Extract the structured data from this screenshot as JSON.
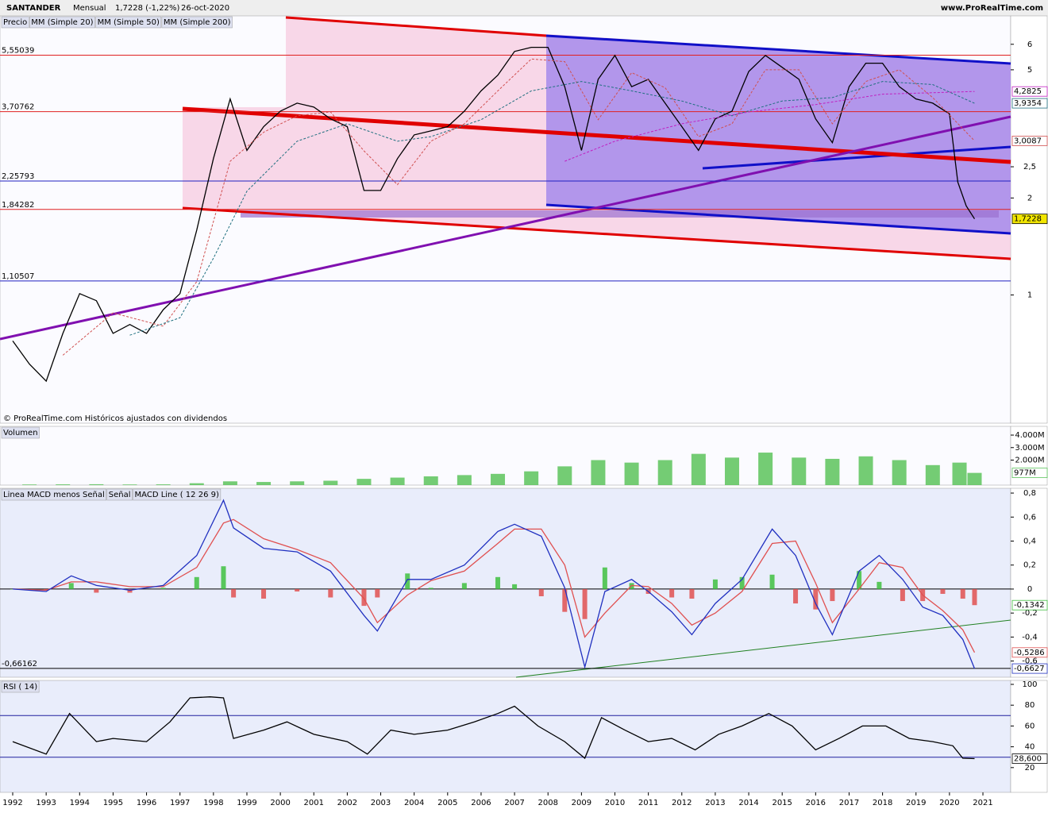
{
  "header": {
    "symbol": "SANTANDER",
    "period": "Mensual",
    "quote": "1,7228 (-1,22%)",
    "date": "26-oct-2020",
    "site": "www.ProRealTime.com",
    "note": "© ProRealTime.com  Históricos ajustados con dividendos"
  },
  "chart_data": [
    {
      "type": "line",
      "log_scale": true,
      "xlim": [
        1991.62,
        2021.83
      ],
      "ylim": [
        0.4,
        7.35
      ],
      "yticks": [
        1,
        2,
        {
          "value": 2.5,
          "label": "2,5"
        },
        5,
        6
      ],
      "levels": [
        {
          "value": 5.55039,
          "label": "5,55039",
          "color": "#e02020"
        },
        {
          "value": 3.70762,
          "label": "3,70762",
          "color": "#e02020"
        },
        {
          "value": 2.25793,
          "label": "2,25793",
          "color": "#2020c0"
        },
        {
          "value": 1.84282,
          "label": "1,84282",
          "color": "#e02020"
        },
        {
          "value": 1.10507,
          "label": "1,10507",
          "color": "#2020c0"
        }
      ],
      "series": [
        {
          "name": "Precio",
          "color": "#000000",
          "label_bg": "#f2e600",
          "x": [
            1992,
            1992.5,
            1993,
            1993.5,
            1994,
            1994.5,
            1995,
            1995.5,
            1996,
            1996.5,
            1997,
            1997.5,
            1998,
            1998.5,
            1999,
            1999.5,
            2000,
            2000.5,
            2001,
            2001.5,
            2002,
            2002.5,
            2003,
            2003.5,
            2004,
            2004.5,
            2005,
            2005.5,
            2006,
            2006.5,
            2007,
            2007.5,
            2008,
            2008.5,
            2009,
            2009.5,
            2010,
            2010.5,
            2011,
            2011.5,
            2012,
            2012.5,
            2013,
            2013.5,
            2014,
            2014.5,
            2015,
            2015.5,
            2016,
            2016.5,
            2017,
            2017.5,
            2018,
            2018.5,
            2019,
            2019.5,
            2020,
            2020.25,
            2020.5,
            2020.75
          ],
          "values": [
            0.72,
            0.61,
            0.54,
            0.76,
            1.01,
            0.96,
            0.76,
            0.81,
            0.76,
            0.9,
            1.01,
            1.59,
            2.65,
            4.06,
            2.81,
            3.33,
            3.72,
            3.94,
            3.83,
            3.52,
            3.33,
            2.11,
            2.11,
            2.65,
            3.14,
            3.23,
            3.33,
            3.72,
            4.3,
            4.81,
            5.7,
            5.87,
            5.87,
            4.43,
            2.81,
            4.67,
            5.54,
            4.43,
            4.67,
            3.94,
            3.33,
            2.81,
            3.52,
            3.72,
            4.94,
            5.54,
            5.09,
            4.67,
            3.52,
            2.97,
            4.43,
            5.24,
            5.24,
            4.43,
            4.06,
            3.94,
            3.65,
            2.24,
            1.89,
            1.7228
          ],
          "last_label": "1,7228"
        },
        {
          "name": "MM (Simple 20)",
          "color": "#d05050",
          "dash": true,
          "x": [
            1993.5,
            1995,
            1996.5,
            1997.5,
            1998.5,
            1999.5,
            2000.5,
            2001.5,
            2002.5,
            2003.5,
            2004.5,
            2005.5,
            2006.5,
            2007.5,
            2008.5,
            2009.5,
            2010.5,
            2011.5,
            2012.5,
            2013.5,
            2014.5,
            2015.5,
            2016.5,
            2017.5,
            2018.5,
            2019.5,
            2020.75
          ],
          "values": [
            0.65,
            0.88,
            0.8,
            1.1,
            2.6,
            3.2,
            3.6,
            3.7,
            2.8,
            2.2,
            3.0,
            3.4,
            4.3,
            5.4,
            5.3,
            3.5,
            4.9,
            4.4,
            3.1,
            3.4,
            5.0,
            5.0,
            3.4,
            4.6,
            5.0,
            4.1,
            3.0087
          ],
          "last_label": "3,0087"
        },
        {
          "name": "MM (Simple 50)",
          "color": "#207080",
          "dash": true,
          "x": [
            1995.5,
            1997,
            1998,
            1999,
            2000.5,
            2002,
            2003.5,
            2004.5,
            2006,
            2007.5,
            2009,
            2010.5,
            2012,
            2013.5,
            2015,
            2016.5,
            2018,
            2019.5,
            2020.75
          ],
          "values": [
            0.75,
            0.85,
            1.3,
            2.1,
            3.0,
            3.4,
            3.0,
            3.1,
            3.5,
            4.3,
            4.6,
            4.3,
            4.0,
            3.6,
            4.0,
            4.1,
            4.6,
            4.5,
            3.9354
          ],
          "last_label": "3,9354"
        },
        {
          "name": "MM (Simple 200)",
          "color": "#c020c0",
          "dash": true,
          "x": [
            2008.5,
            2010,
            2012,
            2014,
            2016,
            2018,
            2020.75
          ],
          "values": [
            2.6,
            3.0,
            3.4,
            3.7,
            3.9,
            4.2,
            4.2825
          ],
          "last_label": "4,2825"
        }
      ]
    },
    {
      "type": "bar",
      "xlim": [
        1991.62,
        2021.83
      ],
      "ylim": [
        0,
        4700
      ],
      "yticks": [
        {
          "value": 4000,
          "label": "4.000M"
        },
        {
          "value": 3000,
          "label": "3.000M"
        },
        {
          "value": 2000,
          "label": "2.000M"
        }
      ],
      "series": [
        {
          "name": "Volumen",
          "color": "#5cc35c",
          "label_bg": "#ffffff",
          "x": [
            1992.5,
            1993.5,
            1994.5,
            1995.5,
            1996.5,
            1997.5,
            1998.5,
            1999.5,
            2000.5,
            2001.5,
            2002.5,
            2003.5,
            2004.5,
            2005.5,
            2006.5,
            2007.5,
            2008.5,
            2009.5,
            2010.5,
            2011.5,
            2012.5,
            2013.5,
            2014.5,
            2015.5,
            2016.5,
            2017.5,
            2018.5,
            2019.5,
            2020.3,
            2020.75
          ],
          "values": [
            50,
            60,
            70,
            50,
            60,
            150,
            300,
            250,
            300,
            350,
            500,
            600,
            700,
            800,
            900,
            1100,
            1500,
            2000,
            1800,
            2000,
            2500,
            2200,
            2600,
            2200,
            2100,
            2300,
            2000,
            1600,
            1800,
            977
          ],
          "last_label": "977M"
        }
      ]
    },
    {
      "type": "line",
      "xlim": [
        1991.62,
        2021.83
      ],
      "ylim": [
        -0.735,
        0.84
      ],
      "yticks": [
        {
          "value": 0.8,
          "label": "0,8"
        },
        {
          "value": 0.6,
          "label": "0,6"
        },
        {
          "value": 0.4,
          "label": "0,4"
        },
        {
          "value": 0.2,
          "label": "0,2"
        },
        0,
        {
          "value": -0.2,
          "label": "-0,2"
        },
        {
          "value": -0.4,
          "label": "-0,4"
        },
        {
          "value": -0.6,
          "label": "-0,6"
        }
      ],
      "levels": [
        {
          "value": 0,
          "color": "#000000"
        },
        {
          "value": -0.66162,
          "label": "-0,66162",
          "color": "#000000"
        }
      ],
      "series": [
        {
          "name": "Linea MACD menos Señal",
          "type": "bar",
          "color": "#40c040",
          "negative_color": "#e05050",
          "label_bg": "#ffffff",
          "x": [
            1992,
            1993,
            1993.75,
            1994.5,
            1995.5,
            1996.5,
            1997.5,
            1998.3,
            1998.6,
            1999.5,
            2000.5,
            2001.5,
            2002.5,
            2002.9,
            2003.8,
            2004.5,
            2005.5,
            2006.5,
            2007,
            2007.8,
            2008.5,
            2009.1,
            2009.7,
            2010.5,
            2011,
            2011.7,
            2012.3,
            2013,
            2013.8,
            2014.7,
            2015.4,
            2016,
            2016.5,
            2017.3,
            2017.9,
            2018.6,
            2019.2,
            2019.8,
            2020.4,
            2020.75
          ],
          "values": [
            0,
            -0.01,
            0.05,
            -0.03,
            -0.03,
            0.01,
            0.1,
            0.19,
            -0.07,
            -0.08,
            -0.02,
            -0.07,
            -0.14,
            -0.07,
            0.13,
            0.01,
            0.05,
            0.1,
            0.04,
            -0.06,
            -0.19,
            -0.25,
            0.18,
            0.05,
            -0.04,
            -0.07,
            -0.08,
            0.08,
            0.1,
            0.12,
            -0.12,
            -0.17,
            -0.1,
            0.15,
            0.06,
            -0.1,
            -0.1,
            -0.04,
            -0.08,
            -0.1342
          ],
          "last_label": "-0,1342"
        },
        {
          "name": "Señal",
          "color": "#e05050",
          "label_bg": "#ffffff",
          "x": [
            1992,
            1993,
            1993.75,
            1994.5,
            1995.5,
            1996.5,
            1997.5,
            1998.3,
            1998.6,
            1999.5,
            2000.5,
            2001.5,
            2002.5,
            2002.9,
            2003.8,
            2004.5,
            2005.5,
            2006.5,
            2007,
            2007.8,
            2008.5,
            2009.1,
            2009.7,
            2010.5,
            2011,
            2011.7,
            2012.3,
            2013,
            2013.8,
            2014.7,
            2015.4,
            2016,
            2016.5,
            2017.3,
            2017.9,
            2018.6,
            2019.2,
            2019.8,
            2020.4,
            2020.75
          ],
          "values": [
            0,
            -0.01,
            0.06,
            0.06,
            0.02,
            0.02,
            0.18,
            0.55,
            0.58,
            0.42,
            0.33,
            0.22,
            -0.08,
            -0.28,
            -0.05,
            0.07,
            0.15,
            0.38,
            0.5,
            0.5,
            0.2,
            -0.4,
            -0.2,
            0.03,
            0.02,
            -0.12,
            -0.3,
            -0.2,
            -0.02,
            0.38,
            0.4,
            0.05,
            -0.28,
            0,
            0.22,
            0.18,
            -0.05,
            -0.18,
            -0.34,
            -0.5286
          ],
          "last_label": "-0,5286"
        },
        {
          "name": "MACD Line ( 12 26 9)",
          "color": "#2030c0",
          "label_bg": "#ffffff",
          "x": [
            1992,
            1993,
            1993.75,
            1994.5,
            1995.5,
            1996.5,
            1997.5,
            1998.3,
            1998.6,
            1999.5,
            2000.5,
            2001.5,
            2002.5,
            2002.9,
            2003.8,
            2004.5,
            2005.5,
            2006.5,
            2007,
            2007.8,
            2008.5,
            2009.1,
            2009.7,
            2010.5,
            2011,
            2011.7,
            2012.3,
            2013,
            2013.8,
            2014.7,
            2015.4,
            2016,
            2016.5,
            2017.3,
            2017.9,
            2018.6,
            2019.2,
            2019.8,
            2020.4,
            2020.75
          ],
          "values": [
            0,
            -0.02,
            0.11,
            0.03,
            -0.01,
            0.03,
            0.28,
            0.74,
            0.51,
            0.34,
            0.31,
            0.15,
            -0.22,
            -0.35,
            0.08,
            0.08,
            0.2,
            0.48,
            0.54,
            0.44,
            0.01,
            -0.65,
            -0.02,
            0.08,
            -0.02,
            -0.19,
            -0.38,
            -0.12,
            0.08,
            0.5,
            0.28,
            -0.12,
            -0.38,
            0.15,
            0.28,
            0.08,
            -0.15,
            -0.22,
            -0.42,
            -0.6627
          ],
          "last_label": "-0,6627"
        }
      ]
    },
    {
      "type": "line",
      "xlim": [
        1991.62,
        2021.83
      ],
      "ylim": [
        -3.8,
        103.8
      ],
      "xticks": [
        1992,
        1993,
        1994,
        1995,
        1996,
        1997,
        1998,
        1999,
        2000,
        2001,
        2002,
        2003,
        2004,
        2005,
        2006,
        2007,
        2008,
        2009,
        2010,
        2011,
        2012,
        2013,
        2014,
        2015,
        2016,
        2017,
        2018,
        2019,
        2020,
        2021
      ],
      "yticks": [
        100,
        80,
        60,
        40,
        20
      ],
      "levels": [
        {
          "value": 70,
          "color": "#2020a0"
        },
        {
          "value": 30,
          "color": "#2020a0"
        }
      ],
      "series": [
        {
          "name": "RSI ( 14)",
          "color": "#000000",
          "label_bg": "#ffffff",
          "x": [
            1992,
            1993,
            1993.7,
            1994.5,
            1995,
            1996,
            1996.7,
            1997.3,
            1997.9,
            1998.3,
            1998.6,
            1999.5,
            2000.2,
            2001,
            2002,
            2002.6,
            2003.3,
            2004,
            2005,
            2005.8,
            2006.5,
            2007,
            2007.7,
            2008.5,
            2009.1,
            2009.6,
            2010.3,
            2011,
            2011.7,
            2012.4,
            2013.1,
            2013.8,
            2014.6,
            2015.3,
            2016,
            2016.7,
            2017.4,
            2018.1,
            2018.8,
            2019.5,
            2020.1,
            2020.4,
            2020.75
          ],
          "values": [
            45,
            33,
            72,
            45,
            48,
            45,
            64,
            87,
            88,
            87,
            48,
            56,
            64,
            52,
            45,
            33,
            56,
            52,
            56,
            64,
            72,
            79,
            60,
            45,
            29,
            68,
            56,
            45,
            48,
            37,
            52,
            60,
            72,
            60,
            37,
            48,
            60,
            60,
            48,
            45,
            41,
            29,
            28.6
          ],
          "last_label": "28,600"
        }
      ]
    }
  ]
}
